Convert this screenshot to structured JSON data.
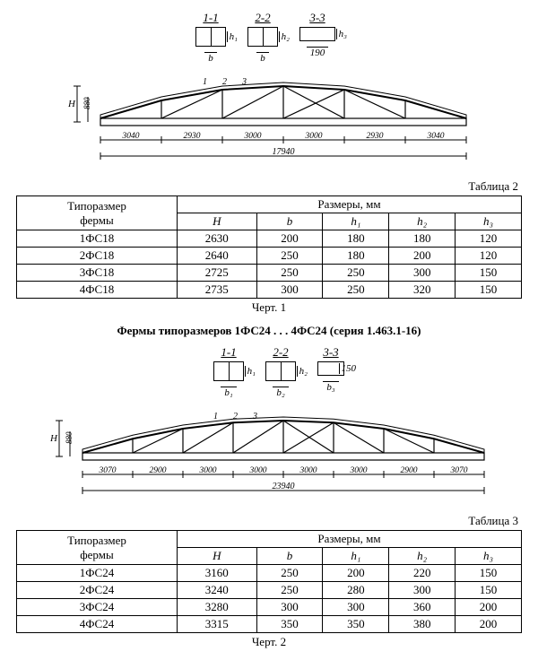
{
  "sections": {
    "labels": [
      "1-1",
      "2-2",
      "3-3"
    ],
    "b_labels": [
      "b",
      "b",
      "190"
    ],
    "h_labels": [
      "h₁",
      "h₂",
      "h₃"
    ],
    "box_w": [
      34,
      34,
      40
    ],
    "box_h": [
      22,
      22,
      16
    ]
  },
  "truss1": {
    "H_dim": "880",
    "H_label": "H",
    "bottom_dims": [
      "3040",
      "2930",
      "3000",
      "3000",
      "2930",
      "3040"
    ],
    "total": "17940",
    "section_marks": [
      "1",
      "2",
      "3"
    ]
  },
  "table2": {
    "title": "Таблица 2",
    "header_main": "Размеры, мм",
    "rowhead": "Типоразмер фермы",
    "cols": [
      "H",
      "b",
      "h₁",
      "h₂",
      "h₃"
    ],
    "rows": [
      [
        "1ФС18",
        "2630",
        "200",
        "180",
        "180",
        "120"
      ],
      [
        "2ФС18",
        "2640",
        "250",
        "180",
        "200",
        "120"
      ],
      [
        "3ФС18",
        "2725",
        "250",
        "250",
        "300",
        "150"
      ],
      [
        "4ФС18",
        "2735",
        "300",
        "250",
        "320",
        "150"
      ]
    ],
    "caption": "Черт. 1"
  },
  "series_title": "Фермы типоразмеров 1ФС24 . . . 4ФС24 (серия 1.463.1-16)",
  "sections2": {
    "labels": [
      "1-1",
      "2-2",
      "3-3"
    ],
    "b_labels": [
      "b₁",
      "b₂",
      "b₃"
    ],
    "h_labels": [
      "h₁",
      "h₂",
      "150"
    ],
    "box_w": [
      34,
      34,
      30
    ],
    "box_h": [
      22,
      22,
      16
    ]
  },
  "truss2": {
    "H_dim": "880",
    "H_label": "H",
    "bottom_dims": [
      "3070",
      "2900",
      "3000",
      "3000",
      "3000",
      "3000",
      "2900",
      "3070"
    ],
    "total": "23940",
    "section_marks": [
      "1",
      "2",
      "3"
    ]
  },
  "table3": {
    "title": "Таблица 3",
    "header_main": "Размеры, мм",
    "rowhead": "Типоразмер фермы",
    "cols": [
      "H",
      "b",
      "h₁",
      "h₂",
      "h₃"
    ],
    "rows": [
      [
        "1ФС24",
        "3160",
        "250",
        "200",
        "220",
        "150"
      ],
      [
        "2ФС24",
        "3240",
        "250",
        "280",
        "300",
        "150"
      ],
      [
        "3ФС24",
        "3280",
        "300",
        "300",
        "360",
        "200"
      ],
      [
        "4ФС24",
        "3315",
        "350",
        "350",
        "380",
        "200"
      ]
    ],
    "caption": "Черт. 2"
  }
}
